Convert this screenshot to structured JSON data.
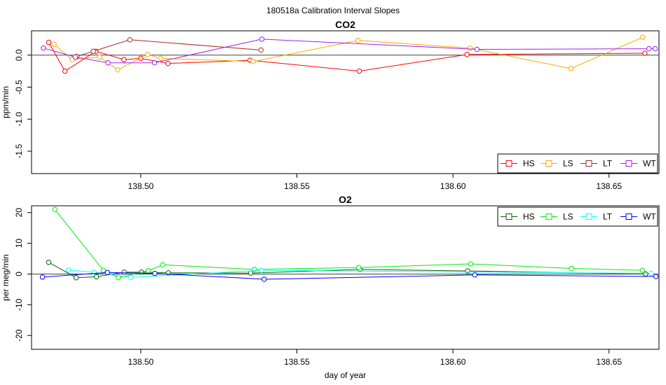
{
  "suptitle": "180518a   Calibration Interval Slopes",
  "chart_data": [
    {
      "type": "line",
      "title": "CO2",
      "xlabel": "",
      "ylabel": "ppm/min",
      "xlim": [
        138.465,
        138.666
      ],
      "ylim": [
        -1.85,
        0.38
      ],
      "x_ticks": [
        138.5,
        138.55,
        138.6,
        138.65
      ],
      "x_tick_labels": [
        "138.50",
        "138.55",
        "138.60",
        "138.65"
      ],
      "y_ticks": [
        0.0,
        -0.5,
        -1.0,
        -1.5
      ],
      "y_tick_labels": [
        "0.0",
        "-0.5",
        "-1.0",
        "-1.5"
      ],
      "zero_line": true,
      "grid": false,
      "legend_position": "bottom-right",
      "series": [
        {
          "name": "HS",
          "color": "#ff0000",
          "x": [
            138.4705,
            138.4757,
            138.4856,
            138.4946,
            138.5,
            138.5087,
            138.535,
            138.57,
            138.6045,
            138.6615
          ],
          "y": [
            0.2,
            -0.25,
            0.06,
            -0.07,
            -0.05,
            -0.13,
            -0.08,
            -0.25,
            0.01,
            0.03
          ]
        },
        {
          "name": "LS",
          "color": "#ffa500",
          "x": [
            138.4722,
            138.478,
            138.4868,
            138.4926,
            138.5022,
            138.5064,
            138.536,
            138.5696,
            138.6055,
            138.6378,
            138.6608
          ],
          "y": [
            0.17,
            -0.07,
            -0.03,
            -0.23,
            0.01,
            -0.05,
            -0.1,
            0.23,
            0.11,
            -0.21,
            0.28
          ]
        },
        {
          "name": "LT",
          "color": "#a52a2a",
          "x": [
            138.4795,
            138.4848,
            138.4965,
            138.5385
          ],
          "y": [
            -0.02,
            0.06,
            0.24,
            0.08
          ]
        },
        {
          "name": "WT",
          "color": "#a020f0",
          "x": [
            138.4688,
            138.479,
            138.4895,
            138.5044,
            138.5388,
            138.6077,
            138.6628,
            138.6648
          ],
          "y": [
            0.11,
            -0.03,
            -0.12,
            -0.12,
            0.25,
            0.09,
            0.1,
            0.1
          ]
        }
      ]
    },
    {
      "type": "line",
      "title": "O2",
      "xlabel": "day of year",
      "ylabel": "per meg/min",
      "xlim": [
        138.465,
        138.666
      ],
      "ylim": [
        -24.5,
        22.2
      ],
      "x_ticks": [
        138.5,
        138.55,
        138.6,
        138.65
      ],
      "x_tick_labels": [
        "138.50",
        "138.55",
        "138.60",
        "138.65"
      ],
      "y_ticks": [
        20,
        10,
        0,
        -10,
        -20
      ],
      "y_tick_labels": [
        "20",
        "10",
        "0",
        "-10",
        "-20"
      ],
      "zero_line": true,
      "grid": false,
      "legend_position": "top-right",
      "series": [
        {
          "name": "HS",
          "color": "#006400",
          "x": [
            138.4705,
            138.4793,
            138.4858,
            138.4947,
            138.5002,
            138.5088,
            138.5352,
            138.5702,
            138.6047,
            138.6617
          ],
          "y": [
            3.8,
            -1.2,
            -0.9,
            0.6,
            0.6,
            0.4,
            0.3,
            1.5,
            1.0,
            0.0
          ]
        },
        {
          "name": "LS",
          "color": "#00ee00",
          "x": [
            138.4725,
            138.488,
            138.4928,
            138.5024,
            138.507,
            138.5364,
            138.5698,
            138.6057,
            138.638,
            138.6607
          ],
          "y": [
            21.0,
            1.2,
            -1.2,
            1.1,
            3.0,
            1.5,
            2.1,
            3.3,
            1.8,
            1.2
          ]
        },
        {
          "name": "LT",
          "color": "#00ffff",
          "x": [
            138.4768,
            138.485,
            138.4968,
            138.5387,
            138.6635
          ],
          "y": [
            1.3,
            0.6,
            -1.1,
            1.2,
            0.2
          ]
        },
        {
          "name": "WT",
          "color": "#0000ff",
          "x": [
            138.4685,
            138.4893,
            138.5045,
            138.5395,
            138.607,
            138.665
          ],
          "y": [
            -1.0,
            0.5,
            0.2,
            -1.7,
            -0.3,
            -0.8
          ]
        }
      ]
    }
  ]
}
